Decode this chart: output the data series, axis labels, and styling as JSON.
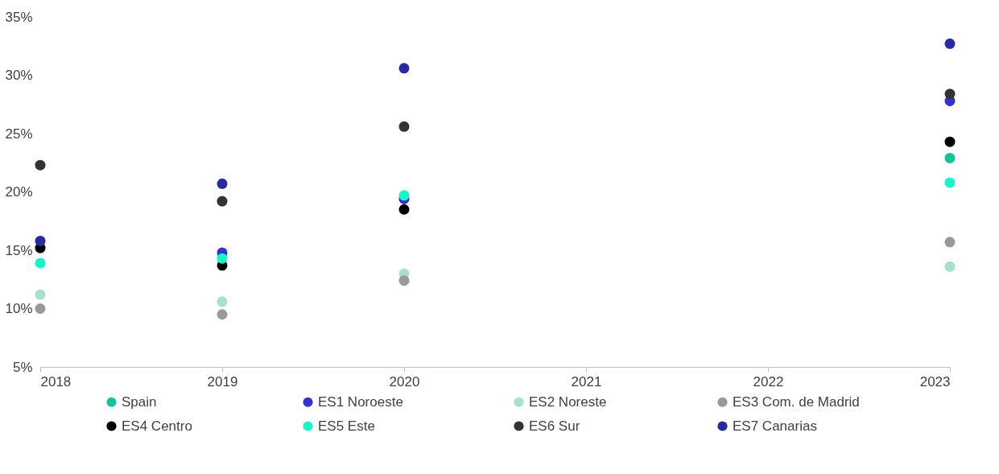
{
  "chart_data": {
    "type": "scatter",
    "x": [
      2018,
      2019,
      2020,
      2023
    ],
    "series": [
      {
        "name": "Spain",
        "color": "#14c39a",
        "values": [
          null,
          null,
          null,
          22.9
        ]
      },
      {
        "name": "ES1 Noroeste",
        "color": "#3333cc",
        "values": [
          null,
          14.8,
          19.4,
          27.8
        ]
      },
      {
        "name": "ES2 Noreste",
        "color": "#a8e0cc",
        "values": [
          11.2,
          10.6,
          13.0,
          13.6
        ]
      },
      {
        "name": "ES3 Com. de Madrid",
        "color": "#999999",
        "values": [
          10.0,
          9.5,
          12.4,
          15.7
        ]
      },
      {
        "name": "ES4 Centro",
        "color": "#000000",
        "values": [
          15.2,
          13.7,
          18.5,
          24.3
        ]
      },
      {
        "name": "ES5 Este",
        "color": "#19f5c8",
        "values": [
          13.9,
          14.3,
          19.7,
          20.8
        ]
      },
      {
        "name": "ES6 Sur",
        "color": "#333333",
        "values": [
          22.3,
          19.2,
          25.6,
          28.4
        ]
      },
      {
        "name": "ES7 Canarias",
        "color": "#2a2aa0",
        "values": [
          15.8,
          20.7,
          30.6,
          32.7
        ]
      }
    ],
    "xlim": [
      2018,
      2023
    ],
    "xticks": [
      2018,
      2019,
      2020,
      2021,
      2022,
      2023
    ],
    "ylim": [
      5,
      35
    ],
    "yticks": [
      {
        "value": 5,
        "label": "5%"
      },
      {
        "value": 10,
        "label": "10%"
      },
      {
        "value": 15,
        "label": "15%"
      },
      {
        "value": 20,
        "label": "20%"
      },
      {
        "value": 25,
        "label": "25%"
      },
      {
        "value": 30,
        "label": "30%"
      },
      {
        "value": 35,
        "label": "35%"
      }
    ],
    "marker": "circle",
    "legend": "bottom",
    "grid": false
  }
}
